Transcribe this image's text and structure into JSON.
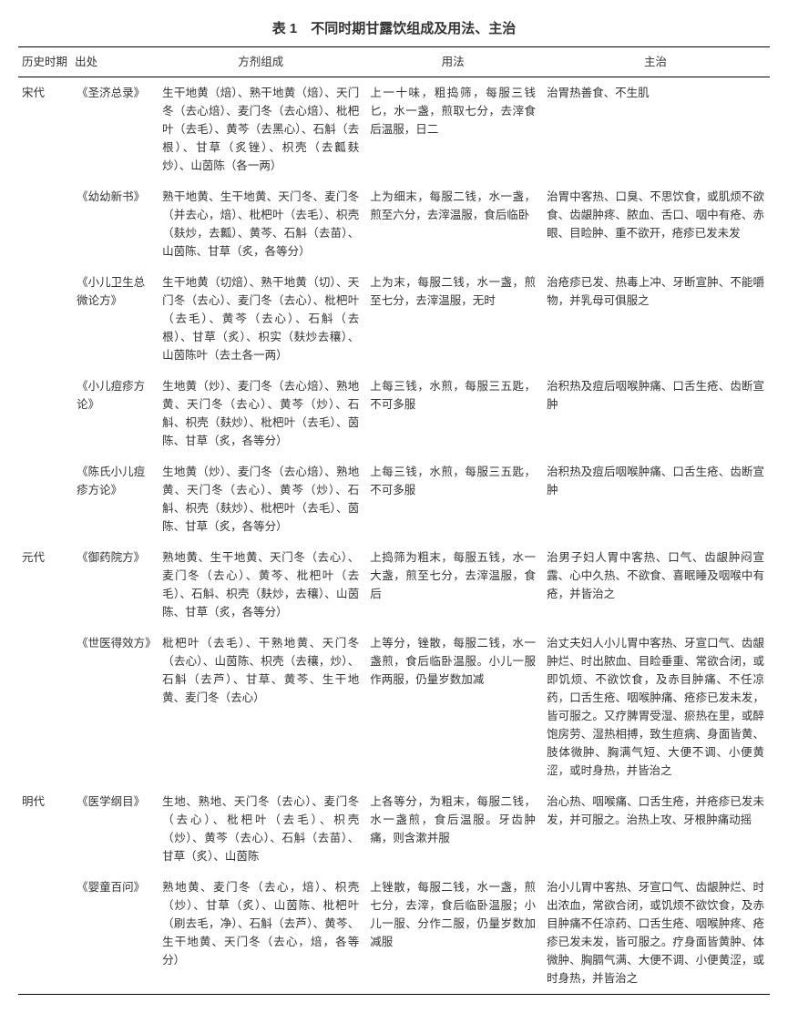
{
  "table": {
    "title": "表 1　不同时期甘露饮组成及用法、主治",
    "headers": {
      "period": "历史时期",
      "source": "出处",
      "composition": "方剂组成",
      "usage": "用法",
      "indication": "主治"
    },
    "rows": [
      {
        "period": "宋代",
        "source": "《圣济总录》",
        "composition": "生干地黄（焙）、熟干地黄（焙）、天门冬（去心焙）、麦门冬（去心焙）、枇杷叶（去毛）、黄芩（去黑心）、石斛（去根）、甘草（炙锉）、枳壳（去瓤麸炒）、山茵陈（各一两）",
        "usage": "上一十味，粗捣筛，每服三钱匕，水一盏，煎取七分，去滓食后温服，日二",
        "indication": "治胃热善食、不生肌"
      },
      {
        "period": "",
        "source": "《幼幼新书》",
        "composition": "熟干地黄、生干地黄、天门冬、麦门冬（并去心，焙）、枇杷叶（去毛）、枳壳（麸炒，去瓤）、黄芩、石斛（去苗）、山茵陈、甘草（炙，各等分）",
        "usage": "上为细末，每服二钱，水一盏，煎至六分，去滓温服，食后临卧",
        "indication": "治胃中客热、口臭、不思饮食，或肌烦不欲食、齿龈肿疼、脓血、舌口、咽中有疮、赤眼、目睑肿、重不欲开，疮疹已发未发"
      },
      {
        "period": "",
        "source": "《小儿卫生总微论方》",
        "composition": "生干地黄（切焙）、熟干地黄（切）、天门冬（去心）、麦门冬（去心）、枇杷叶（去毛）、黄芩（去心）、石斛（去根）、甘草（炙）、枳实（麸炒去穰）、山茵陈叶（去土各一两）",
        "usage": "上为末，每服二钱，水一盏，煎至七分，去滓温服，无时",
        "indication": "治疮疹已发、热毒上冲、牙断宣肿、不能嚼物，并乳母可俱服之"
      },
      {
        "period": "",
        "source": "《小儿痘疹方论》",
        "composition": "生地黄（炒）、麦门冬（去心焙）、熟地黄、天门冬（去心）、黄芩（炒）、石斛、枳壳（麸炒）、枇杷叶（去毛）、茵陈、甘草（炙，各等分）",
        "usage": "上每三钱，水煎，每服三五匙，不可多服",
        "indication": "治积热及痘后咽喉肿痛、口舌生疮、齿断宣肿"
      },
      {
        "period": "",
        "source": "《陈氏小儿痘疹方论》",
        "composition": "生地黄（炒）、麦门冬（去心焙）、熟地黄、天门冬（去心）、黄芩（炒）、石斛、枳壳（麸炒）、枇杷叶（去毛）、茵陈、甘草（炙，各等分）",
        "usage": "上每三钱，水煎，每服三五匙，不可多服",
        "indication": "治积热及痘后咽喉肿痛、口舌生疮、齿断宣肿"
      },
      {
        "period": "元代",
        "source": "《御药院方》",
        "composition": "熟地黄、生干地黄、天门冬（去心）、麦门冬（去心）、黄芩、枇杷叶（去毛）、石斛、枳壳（麸炒，去穰）、山茵陈、甘草（炙，各等分）",
        "usage": "上捣筛为粗末，每服五钱，水一大盏，煎至七分，去滓温服，食后",
        "indication": "治男子妇人胃中客热、口气、齿龈肿闷宣露、心中久热、不欲食、喜眠睡及咽喉中有疮，并皆治之"
      },
      {
        "period": "",
        "source": "《世医得效方》",
        "composition": "枇杷叶（去毛）、干熟地黄、天门冬（去心）、山茵陈、枳壳（去穰，炒）、石斛（去芦）、甘草、黄芩、生干地黄、麦门冬（去心）",
        "usage": "上等分，锉散，每服二钱，水一盏煎，食后临卧温服。小儿一服作两服，仍量岁数加减",
        "indication": "治丈夫妇人小儿胃中客热、牙宣口气、齿龈肿烂、时出脓血、目睑垂重、常欲合闭，或即饥烦、不欲饮食，及赤目肿痛、不任凉药，口舌生疮、咽喉肿痛、疮疹已发未发，皆可服之。又疗脾胃受湿、瘀热在里，或醉饱房劳、湿热相搏，致生疸病、身面皆黄、肢体微肿、胸满气短、大便不调、小便黄涩，或时身热，并皆治之"
      },
      {
        "period": "明代",
        "source": "《医学纲目》",
        "composition": "生地、熟地、天门冬（去心）、麦门冬（去心）、枇杷叶（去毛）、枳壳（炒）、黄芩（去心）、石斛（去苗）、甘草（炙）、山茵陈",
        "usage": "上各等分，为粗末，每服二钱，水一盏煎，食后温服。牙齿肿痛，则含漱并服",
        "indication": "治心热、咽喉痛、口舌生疮，并疮疹已发未发，并可服之。治热上攻、牙根肿痛动摇"
      },
      {
        "period": "",
        "source": "《婴童百问》",
        "composition": "熟地黄、麦门冬（去心，焙）、枳壳（炒）、甘草（炙）、山茵陈、枇杷叶（刷去毛，净）、石斛（去芦）、黄芩、生干地黄、天门冬（去心，焙，各等分）",
        "usage": "上锉散，每服二钱，水一盏，煎七分，去滓，食后临卧温服；小儿一服、分作二服，仍量岁数加减服",
        "indication": "治小儿胃中客热、牙宣口气、齿龈肿烂、时出浓血，常欲合闭，或饥烦不欲饮食，及赤目肿痛不任凉药、口舌生疮、咽喉肿疼、疮疹已发未发，皆可服之。疗身面皆黄肿、体微肿、胸膈气满、大便不调、小便黄涩，或时身热，并皆治之"
      }
    ]
  }
}
